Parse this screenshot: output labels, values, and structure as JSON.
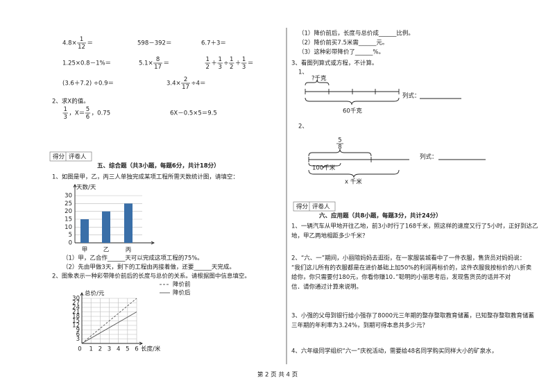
{
  "left": {
    "oral_calc": [
      [
        "4.8×",
        {
          "num": "1",
          "den": "12"
        },
        "＝"
      ],
      [
        "598－392＝"
      ],
      [
        "6.7＋3＝"
      ],
      [
        "1.25×0.8－1%＝"
      ],
      [
        "5.1×",
        {
          "num": "8",
          "den": "17"
        },
        "＝"
      ],
      [
        {
          "num": "1",
          "den": "2"
        },
        "＋",
        {
          "num": "1",
          "den": "3"
        },
        "÷",
        {
          "num": "1",
          "den": "2"
        },
        "＋",
        {
          "num": "1",
          "den": "3"
        },
        "＝"
      ],
      [
        "(3.6＋7.2) ÷0.9＝"
      ],
      [
        "3.4×",
        {
          "num": "2",
          "den": "17"
        },
        "÷4＝"
      ]
    ],
    "q2_title": "2、求X的值。",
    "equations": [
      [
        {
          "num": "1",
          "den": "3"
        },
        "，X＝",
        {
          "num": "5",
          "den": "6"
        },
        "，0.75"
      ],
      [
        "6X－0.5×5＝9.5"
      ]
    ],
    "section5": {
      "score": "得分",
      "grader": "评卷人",
      "heading": "五、综合题（共3小题，每题6分，共计18分）"
    },
    "q1_text": "1、如图是甲，乙，丙三人单独完成某项工程所需天数统计图，请填空：",
    "bar_chart": {
      "y_label": "天数/天",
      "categories": [
        "甲",
        "乙",
        "丙"
      ],
      "values": [
        15,
        20,
        25
      ],
      "ylim": [
        0,
        30
      ],
      "yticks": [
        0,
        5,
        10,
        15,
        20,
        25,
        30
      ]
    },
    "q1_blanks": [
      "（1）甲，乙合作______天可以完成这项工程的75%。",
      "（2）先由甲做3天，剩下的工程由丙接着做，还要______天完成。"
    ],
    "q2_text": "2、图象表示一种彩带降价前后的长度与总价的关系。请根据图中信息填空。",
    "line_chart": {
      "y_label": "总价/元",
      "x_label": "长度/米",
      "xlim": [
        0,
        6
      ],
      "ylim": [
        0,
        30
      ],
      "xticks": [
        0,
        1,
        2,
        3,
        4,
        5,
        6
      ],
      "yticks": [
        3,
        6,
        9,
        12,
        15,
        18,
        21,
        24,
        27,
        30
      ],
      "series": [
        {
          "name": "降价前",
          "style": "dashed",
          "x": [
            0,
            6
          ],
          "values": [
            0,
            30
          ]
        },
        {
          "name": "降价后",
          "style": "solid",
          "x": [
            0,
            6
          ],
          "values": [
            0,
            21
          ]
        }
      ]
    }
  },
  "right": {
    "q2_blanks": [
      "（1）降价前后，长度与总价成______比例。",
      "（2）降价前买7.5米需______元。",
      "（3）这种彩带降价了______%。"
    ],
    "q3_title": "3、看图列算式或方程，不计算。",
    "d1": {
      "label": "1、",
      "top": "?千克",
      "bottom": "60千克",
      "formula": "列式："
    },
    "d2": {
      "label": "2、",
      "fraction": {
        "num": "5",
        "den": "8"
      },
      "mid": "100千米",
      "bottom": "x 千米",
      "formula": "列式："
    },
    "section6": {
      "score": "得分",
      "grader": "评卷人",
      "heading": "六、应用题（共8小题，每题3分，共计24分）"
    },
    "problems": [
      [
        "1、一辆汽车从甲地开往乙地，前3小时行了168千米，照这样的速度又行了5小时，正好到达乙",
        "地，甲乙两地相距多少千米？"
      ],
      [
        "2、“六、一”期间，小丽陪妈妈去逛街，在一家服装城看中了一件衣服，售货员对妈妈说：",
        "“我们这儿所有的衣服都是在进价基础上加50%的利润再标价的，这件衣服我按标价的八折卖",
        "给你，你只需要付180元，你看你赚10．”聪明的小丽思考后，发现售货员的话并不对",
        "信．请你通过计算来说明。"
      ],
      [
        "3、小强的父母到银行给小强存了8000元三年期的整存整取教育储蓄，已知整存整取教育储蓄",
        "三年期的年利率为3.24%，到期可得本息共多少元？"
      ],
      [
        "4、六年级同学组织“六一”庆祝活动，需要给48名同学购买同样大小的矿泉水，"
      ]
    ]
  },
  "footer": "第 2 页 共 4 页"
}
